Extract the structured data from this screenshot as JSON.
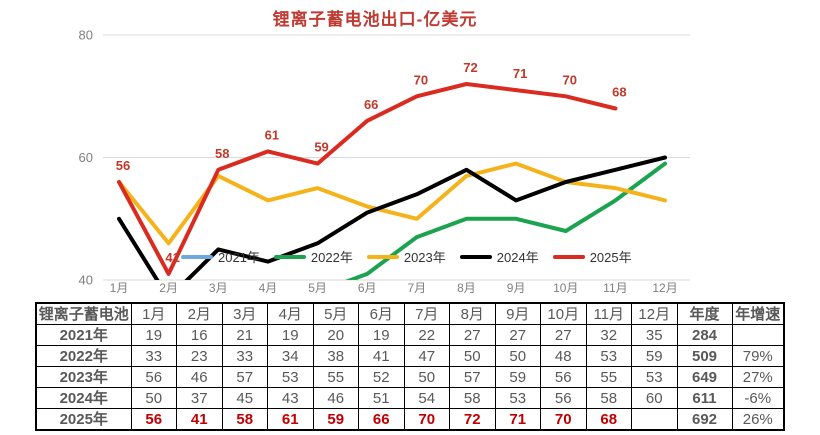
{
  "chart_data": {
    "type": "line",
    "title": "锂离子蓄电池出口-亿美元",
    "categories": [
      "1月",
      "2月",
      "3月",
      "4月",
      "5月",
      "6月",
      "7月",
      "8月",
      "9月",
      "10月",
      "11月",
      "12月"
    ],
    "series": [
      {
        "name": "2021年",
        "color": "#6FA8DC",
        "values": [
          19,
          16,
          21,
          19,
          20,
          19,
          22,
          27,
          27,
          27,
          32,
          35
        ],
        "show_labels": false
      },
      {
        "name": "2022年",
        "color": "#1CA350",
        "values": [
          33,
          23,
          33,
          34,
          38,
          41,
          47,
          50,
          50,
          48,
          53,
          59
        ],
        "show_labels": false
      },
      {
        "name": "2023年",
        "color": "#F5B31B",
        "values": [
          56,
          46,
          57,
          53,
          55,
          52,
          50,
          57,
          59,
          56,
          55,
          53
        ],
        "show_labels": false
      },
      {
        "name": "2024年",
        "color": "#000000",
        "values": [
          50,
          37,
          45,
          43,
          46,
          51,
          54,
          58,
          53,
          56,
          58,
          60
        ],
        "show_labels": false
      },
      {
        "name": "2025年",
        "color": "#D92B20",
        "values": [
          56,
          41,
          58,
          61,
          59,
          66,
          70,
          72,
          71,
          70,
          68,
          null
        ],
        "show_labels": true,
        "label_color": "#C0392B"
      }
    ],
    "ylim": [
      40,
      80
    ],
    "yticks": [
      40,
      60,
      80
    ],
    "grid": true,
    "legend_position": "inside-bottom",
    "axis_label_color": "#7F7F7F",
    "gridline_color": "#D9D9D9"
  },
  "table": {
    "corner_label": "锂离子蓄电池",
    "month_headers": [
      "1月",
      "2月",
      "3月",
      "4月",
      "5月",
      "6月",
      "7月",
      "8月",
      "9月",
      "10月",
      "11月",
      "12月"
    ],
    "annual_header": "年度",
    "growth_header": "年增速",
    "rows": [
      {
        "label": "2021年",
        "values": [
          "19",
          "16",
          "21",
          "19",
          "20",
          "19",
          "22",
          "27",
          "27",
          "27",
          "32",
          "35"
        ],
        "annual": "284",
        "growth": "",
        "highlight": false
      },
      {
        "label": "2022年",
        "values": [
          "33",
          "23",
          "33",
          "34",
          "38",
          "41",
          "47",
          "50",
          "50",
          "48",
          "53",
          "59"
        ],
        "annual": "509",
        "growth": "79%",
        "highlight": false
      },
      {
        "label": "2023年",
        "values": [
          "56",
          "46",
          "57",
          "53",
          "55",
          "52",
          "50",
          "57",
          "59",
          "56",
          "55",
          "53"
        ],
        "annual": "649",
        "growth": "27%",
        "highlight": false
      },
      {
        "label": "2024年",
        "values": [
          "50",
          "37",
          "45",
          "43",
          "46",
          "51",
          "54",
          "58",
          "53",
          "56",
          "58",
          "60"
        ],
        "annual": "611",
        "growth": "-6%",
        "highlight": false
      },
      {
        "label": "2025年",
        "values": [
          "56",
          "41",
          "58",
          "61",
          "59",
          "66",
          "70",
          "72",
          "71",
          "70",
          "68",
          ""
        ],
        "annual": "692",
        "growth": "26%",
        "highlight": true
      }
    ]
  }
}
